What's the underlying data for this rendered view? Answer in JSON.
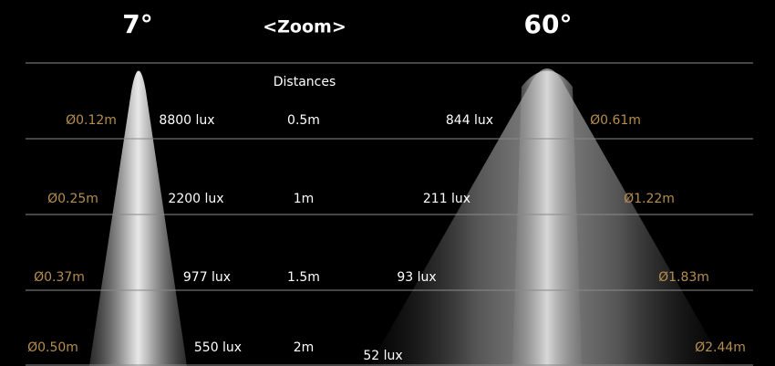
{
  "header": {
    "left": "7°",
    "center": "<Zoom>",
    "right": "60°"
  },
  "distances_label": "Distances",
  "rows": [
    {
      "left_diameter": "Ø0.12m",
      "left_lux": "8800 lux",
      "distance": "0.5m",
      "right_lux": "844 lux",
      "right_diameter": "Ø0.61m"
    },
    {
      "left_diameter": "Ø0.25m",
      "left_lux": "2200 lux",
      "distance": "1m",
      "right_lux": "211 lux",
      "right_diameter": "Ø1.22m"
    },
    {
      "left_diameter": "Ø0.37m",
      "left_lux": "977 lux",
      "distance": "1.5m",
      "right_lux": "93 lux",
      "right_diameter": "Ø1.83m"
    },
    {
      "left_diameter": "Ø0.50m",
      "left_lux": "550 lux",
      "distance": "2m",
      "right_lux": "52 lux",
      "right_diameter": "Ø2.44m"
    }
  ]
}
